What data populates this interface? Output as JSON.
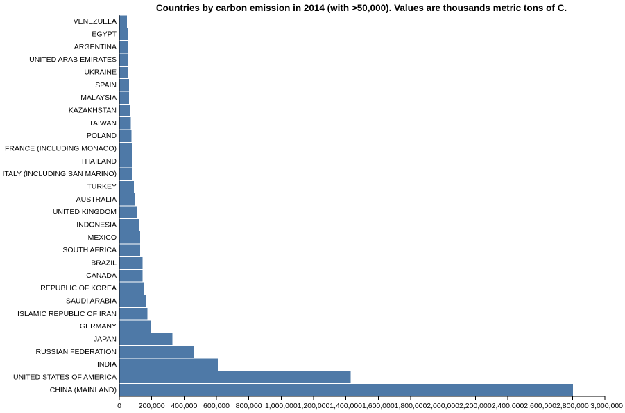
{
  "chart_data": {
    "type": "bar",
    "orientation": "horizontal",
    "title": "Countries by carbon emission in 2014 (with >50,000). Values are thousands metric tons of C.",
    "xlabel": "",
    "ylabel": "",
    "xlim": [
      0,
      3000000
    ],
    "grid": false,
    "bar_color": "#4e79a7",
    "x_ticks": [
      0,
      200000,
      400000,
      600000,
      800000,
      1000000,
      1200000,
      1400000,
      1600000,
      1800000,
      2000000,
      2200000,
      2400000,
      2600000,
      2800000,
      3000000
    ],
    "x_tick_labels": [
      "0",
      "200,000",
      "400,000",
      "600,000",
      "800,000",
      "1,000,000",
      "1,200,000",
      "1,400,000",
      "1,600,000",
      "1,800,000",
      "2,000,000",
      "2,200,000",
      "2,400,000",
      "2,600,000",
      "2,800,000",
      "3,000,000"
    ],
    "categories": [
      "VENEZUELA",
      "EGYPT",
      "ARGENTINA",
      "UNITED ARAB EMIRATES",
      "UKRAINE",
      "SPAIN",
      "MALAYSIA",
      "KAZAKHSTAN",
      "TAIWAN",
      "POLAND",
      "FRANCE (INCLUDING MONACO)",
      "THAILAND",
      "ITALY (INCLUDING SAN MARINO)",
      "TURKEY",
      "AUSTRALIA",
      "UNITED KINGDOM",
      "INDONESIA",
      "MEXICO",
      "SOUTH AFRICA",
      "BRAZIL",
      "CANADA",
      "REPUBLIC OF KOREA",
      "SAUDI ARABIA",
      "ISLAMIC REPUBLIC OF IRAN",
      "GERMANY",
      "JAPAN",
      "RUSSIAN FEDERATION",
      "INDIA",
      "UNITED STATES OF AMERICA",
      "CHINA (MAINLAND)"
    ],
    "values": [
      50000,
      54000,
      55000,
      55000,
      58000,
      63000,
      63000,
      67000,
      72000,
      77000,
      79000,
      83000,
      84000,
      93000,
      98000,
      113000,
      125000,
      130000,
      130000,
      145000,
      146000,
      157000,
      165000,
      176000,
      196000,
      331000,
      465000,
      611000,
      1432000,
      2806000
    ]
  }
}
